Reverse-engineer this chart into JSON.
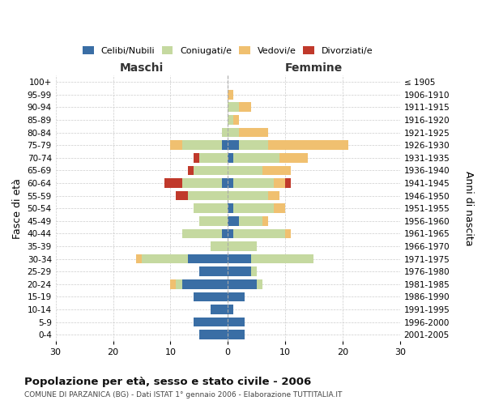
{
  "age_groups": [
    "100+",
    "95-99",
    "90-94",
    "85-89",
    "80-84",
    "75-79",
    "70-74",
    "65-69",
    "60-64",
    "55-59",
    "50-54",
    "45-49",
    "40-44",
    "35-39",
    "30-34",
    "25-29",
    "20-24",
    "15-19",
    "10-14",
    "5-9",
    "0-4"
  ],
  "birth_years": [
    "≤ 1905",
    "1906-1910",
    "1911-1915",
    "1916-1920",
    "1921-1925",
    "1926-1930",
    "1931-1935",
    "1936-1940",
    "1941-1945",
    "1946-1950",
    "1951-1955",
    "1956-1960",
    "1961-1965",
    "1966-1970",
    "1971-1975",
    "1976-1980",
    "1981-1985",
    "1986-1990",
    "1991-1995",
    "1996-2000",
    "2001-2005"
  ],
  "male_celibi": [
    0,
    0,
    0,
    0,
    0,
    1,
    0,
    0,
    1,
    0,
    0,
    0,
    1,
    0,
    7,
    5,
    8,
    6,
    3,
    6,
    5
  ],
  "male_coniugati": [
    0,
    0,
    0,
    0,
    1,
    7,
    5,
    6,
    7,
    7,
    6,
    5,
    7,
    3,
    8,
    0,
    1,
    0,
    0,
    0,
    0
  ],
  "male_vedovi": [
    0,
    0,
    0,
    0,
    0,
    2,
    0,
    0,
    0,
    0,
    0,
    0,
    0,
    0,
    1,
    0,
    1,
    0,
    0,
    0,
    0
  ],
  "male_divorziati": [
    0,
    0,
    0,
    0,
    0,
    0,
    1,
    1,
    3,
    2,
    0,
    0,
    0,
    0,
    0,
    0,
    0,
    0,
    0,
    0,
    0
  ],
  "female_celibi": [
    0,
    0,
    0,
    0,
    0,
    2,
    1,
    0,
    1,
    0,
    1,
    2,
    1,
    0,
    4,
    4,
    5,
    3,
    1,
    3,
    3
  ],
  "female_coniugati": [
    0,
    0,
    2,
    1,
    2,
    5,
    8,
    6,
    7,
    7,
    7,
    4,
    9,
    5,
    11,
    1,
    1,
    0,
    0,
    0,
    0
  ],
  "female_vedovi": [
    0,
    1,
    2,
    1,
    5,
    14,
    5,
    5,
    2,
    2,
    2,
    1,
    1,
    0,
    0,
    0,
    0,
    0,
    0,
    0,
    0
  ],
  "female_divorziati": [
    0,
    0,
    0,
    0,
    0,
    0,
    0,
    0,
    1,
    0,
    0,
    0,
    0,
    0,
    0,
    0,
    0,
    0,
    0,
    0,
    0
  ],
  "colors": {
    "celibi": "#3a6ea5",
    "coniugati": "#c5d9a0",
    "vedovi": "#f0c070",
    "divorziati": "#c0392b"
  },
  "xlim": [
    -30,
    30
  ],
  "title": "Popolazione per età, sesso e stato civile - 2006",
  "subtitle": "COMUNE DI PARZANICA (BG) - Dati ISTAT 1° gennaio 2006 - Elaborazione TUTTITALIA.IT",
  "ylabel_left": "Fasce di età",
  "ylabel_right": "Anni di nascita",
  "xlabel_maschi": "Maschi",
  "xlabel_femmine": "Femmine"
}
